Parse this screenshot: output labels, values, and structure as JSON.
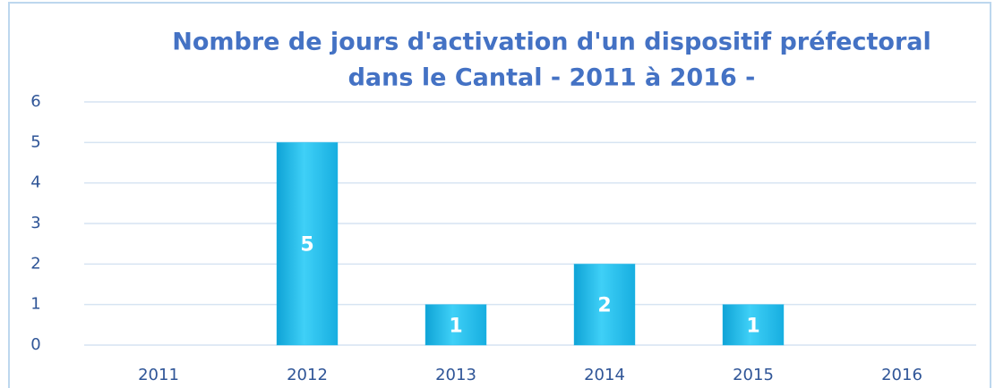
{
  "chart_data": {
    "type": "bar",
    "title": [
      "Nombre de jours d'activation d'un dispositif préfectoral",
      "dans le Cantal - 2011 à 2016 -"
    ],
    "categories": [
      "2011",
      "2012",
      "2013",
      "2014",
      "2015",
      "2016"
    ],
    "values": [
      0,
      5,
      1,
      2,
      1,
      0
    ],
    "color": "#1fb8ea",
    "ylim": [
      0,
      6
    ],
    "yticks": [
      0,
      1,
      2,
      3,
      4,
      5,
      6
    ],
    "grid": true
  }
}
